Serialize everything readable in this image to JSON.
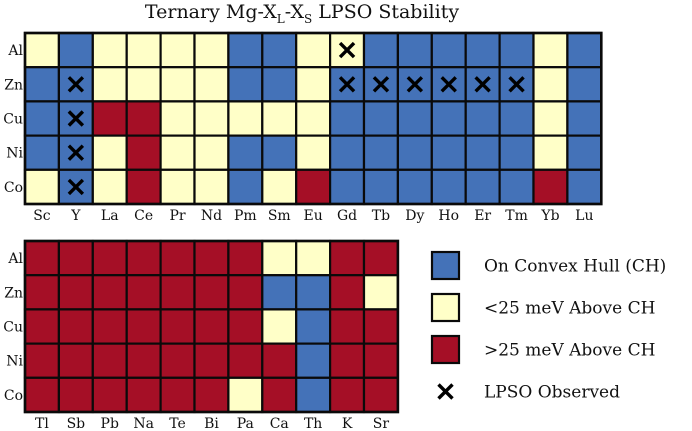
{
  "chart_data": {
    "type": "heatmap",
    "title": {
      "prefix": "Ternary Mg-X",
      "sub1": "L",
      "mid": "-X",
      "sub2": "S",
      "suffix": " LPSO Stability"
    },
    "colors": {
      "CH": "#4472b8",
      "LT25": "#ffffc8",
      "GT25": "#a50f26",
      "grid": "#0a0a0a"
    },
    "legend": [
      {
        "code": "CH",
        "label": "On Convex Hull (CH)"
      },
      {
        "code": "LT25",
        "label": "<25 meV Above CH"
      },
      {
        "code": "GT25",
        "label": ">25 meV Above CH"
      },
      {
        "code": "X",
        "label": "LPSO Observed"
      }
    ],
    "marker": "✕",
    "panels": [
      {
        "rows": [
          "Al",
          "Zn",
          "Cu",
          "Ni",
          "Co"
        ],
        "cols": [
          "Sc",
          "Y",
          "La",
          "Ce",
          "Pr",
          "Nd",
          "Pm",
          "Sm",
          "Eu",
          "Gd",
          "Tb",
          "Dy",
          "Ho",
          "Er",
          "Tm",
          "Yb",
          "Lu"
        ],
        "values": [
          [
            "LT25",
            "CH",
            "LT25",
            "LT25",
            "LT25",
            "LT25",
            "CH",
            "CH",
            "LT25",
            "LT25",
            "CH",
            "CH",
            "CH",
            "CH",
            "CH",
            "LT25",
            "CH"
          ],
          [
            "CH",
            "CH",
            "LT25",
            "LT25",
            "LT25",
            "LT25",
            "CH",
            "CH",
            "LT25",
            "CH",
            "CH",
            "CH",
            "CH",
            "CH",
            "CH",
            "LT25",
            "CH"
          ],
          [
            "CH",
            "CH",
            "GT25",
            "GT25",
            "LT25",
            "LT25",
            "LT25",
            "LT25",
            "LT25",
            "CH",
            "CH",
            "CH",
            "CH",
            "CH",
            "CH",
            "LT25",
            "CH"
          ],
          [
            "CH",
            "CH",
            "LT25",
            "GT25",
            "LT25",
            "LT25",
            "CH",
            "CH",
            "LT25",
            "CH",
            "CH",
            "CH",
            "CH",
            "CH",
            "CH",
            "LT25",
            "CH"
          ],
          [
            "LT25",
            "CH",
            "LT25",
            "GT25",
            "LT25",
            "LT25",
            "CH",
            "LT25",
            "GT25",
            "CH",
            "CH",
            "CH",
            "CH",
            "CH",
            "CH",
            "GT25",
            "CH"
          ]
        ],
        "observed": [
          [
            0,
            0,
            0,
            0,
            0,
            0,
            0,
            0,
            0,
            1,
            0,
            0,
            0,
            0,
            0,
            0,
            0
          ],
          [
            0,
            1,
            0,
            0,
            0,
            0,
            0,
            0,
            0,
            1,
            1,
            1,
            1,
            1,
            1,
            0,
            0
          ],
          [
            0,
            1,
            0,
            0,
            0,
            0,
            0,
            0,
            0,
            0,
            0,
            0,
            0,
            0,
            0,
            0,
            0
          ],
          [
            0,
            1,
            0,
            0,
            0,
            0,
            0,
            0,
            0,
            0,
            0,
            0,
            0,
            0,
            0,
            0,
            0
          ],
          [
            0,
            1,
            0,
            0,
            0,
            0,
            0,
            0,
            0,
            0,
            0,
            0,
            0,
            0,
            0,
            0,
            0
          ]
        ]
      },
      {
        "rows": [
          "Al",
          "Zn",
          "Cu",
          "Ni",
          "Co"
        ],
        "cols": [
          "Tl",
          "Sb",
          "Pb",
          "Na",
          "Te",
          "Bi",
          "Pa",
          "Ca",
          "Th",
          "K",
          "Sr"
        ],
        "values": [
          [
            "GT25",
            "GT25",
            "GT25",
            "GT25",
            "GT25",
            "GT25",
            "GT25",
            "LT25",
            "LT25",
            "GT25",
            "GT25"
          ],
          [
            "GT25",
            "GT25",
            "GT25",
            "GT25",
            "GT25",
            "GT25",
            "GT25",
            "CH",
            "CH",
            "GT25",
            "LT25"
          ],
          [
            "GT25",
            "GT25",
            "GT25",
            "GT25",
            "GT25",
            "GT25",
            "GT25",
            "LT25",
            "CH",
            "GT25",
            "GT25"
          ],
          [
            "GT25",
            "GT25",
            "GT25",
            "GT25",
            "GT25",
            "GT25",
            "GT25",
            "GT25",
            "CH",
            "GT25",
            "GT25"
          ],
          [
            "GT25",
            "GT25",
            "GT25",
            "GT25",
            "GT25",
            "GT25",
            "LT25",
            "GT25",
            "CH",
            "GT25",
            "GT25"
          ]
        ],
        "observed": [
          [
            0,
            0,
            0,
            0,
            0,
            0,
            0,
            0,
            0,
            0,
            0
          ],
          [
            0,
            0,
            0,
            0,
            0,
            0,
            0,
            0,
            0,
            0,
            0
          ],
          [
            0,
            0,
            0,
            0,
            0,
            0,
            0,
            0,
            0,
            0,
            0
          ],
          [
            0,
            0,
            0,
            0,
            0,
            0,
            0,
            0,
            0,
            0,
            0
          ],
          [
            0,
            0,
            0,
            0,
            0,
            0,
            0,
            0,
            0,
            0,
            0
          ]
        ]
      }
    ]
  }
}
